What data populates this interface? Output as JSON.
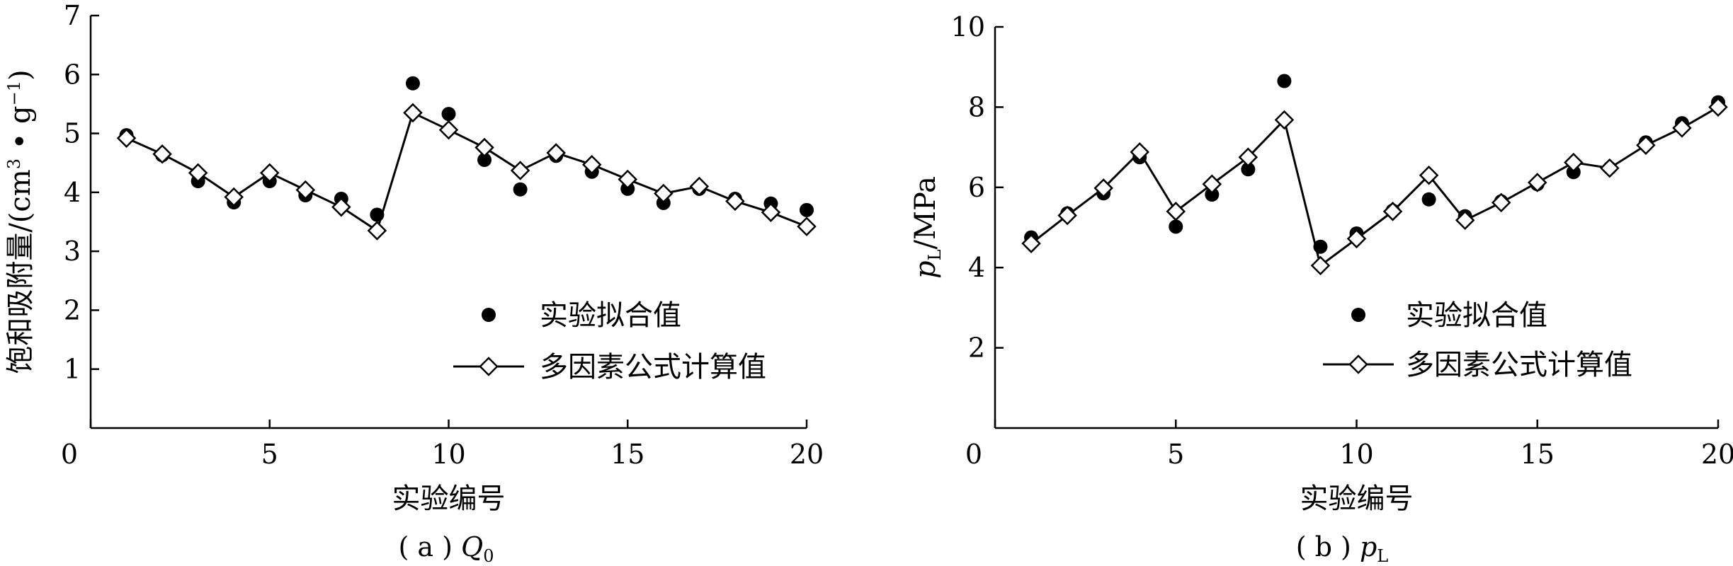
{
  "chart_data": [
    {
      "type": "scatter",
      "panel": "a",
      "caption": "( a )  Q0",
      "caption_parts": {
        "prefix": "( a )  ",
        "symbol": "Q",
        "subscript": "0"
      },
      "ylabel": "饱和吸附量/(cm³ • g⁻¹)",
      "ylabel_parts": {
        "main": "饱和吸附量/(cm",
        "sup1": "3",
        "mid": " • g",
        "sup2": "−1",
        "end": ")"
      },
      "xlabel": "实验编号",
      "xlim": [
        0,
        20
      ],
      "ylim": [
        0,
        7
      ],
      "x_ticks": [
        0,
        5,
        10,
        15,
        20
      ],
      "y_ticks": [
        1,
        2,
        3,
        4,
        5,
        6,
        7
      ],
      "legend_position": "bottom-right",
      "series": [
        {
          "name": "实验拟合值",
          "marker": "filled-circle",
          "x": [
            1,
            2,
            3,
            4,
            5,
            6,
            7,
            8,
            9,
            10,
            11,
            12,
            13,
            14,
            15,
            16,
            17,
            18,
            19,
            20
          ],
          "values": [
            4.97,
            4.63,
            4.19,
            3.83,
            4.19,
            3.95,
            3.89,
            3.62,
            5.85,
            5.33,
            4.55,
            4.05,
            4.62,
            4.35,
            4.06,
            3.82,
            4.06,
            3.89,
            3.81,
            3.7
          ]
        },
        {
          "name": "多因素公式计算值",
          "marker": "open-diamond-line",
          "x": [
            1,
            2,
            3,
            4,
            5,
            6,
            7,
            8,
            9,
            10,
            11,
            12,
            13,
            14,
            15,
            16,
            17,
            18,
            19,
            20
          ],
          "values": [
            4.92,
            4.65,
            4.33,
            3.92,
            4.33,
            4.04,
            3.75,
            3.35,
            5.35,
            5.06,
            4.76,
            4.37,
            4.67,
            4.47,
            4.22,
            3.98,
            4.1,
            3.85,
            3.66,
            3.42
          ]
        }
      ]
    },
    {
      "type": "scatter",
      "panel": "b",
      "caption": "( b ) pL",
      "caption_parts": {
        "prefix": "( b ) ",
        "symbol": "p",
        "subscript": "L"
      },
      "ylabel": "pL/MPa",
      "ylabel_parts": {
        "symbol": "p",
        "subscript": "L",
        "unit": "/MPa"
      },
      "xlabel": "实验编号",
      "xlim": [
        0,
        20
      ],
      "ylim": [
        0,
        10
      ],
      "x_ticks": [
        0,
        5,
        10,
        15,
        20
      ],
      "y_ticks": [
        2,
        4,
        6,
        8,
        10
      ],
      "legend_position": "bottom-right",
      "series": [
        {
          "name": "实验拟合值",
          "marker": "filled-circle",
          "x": [
            1,
            2,
            3,
            4,
            5,
            6,
            7,
            8,
            9,
            10,
            11,
            12,
            13,
            14,
            15,
            16,
            17,
            18,
            19,
            20
          ],
          "values": [
            4.75,
            5.35,
            5.85,
            6.75,
            5.02,
            5.82,
            6.45,
            8.65,
            4.52,
            4.85,
            5.42,
            5.7,
            5.28,
            5.65,
            6.08,
            6.38,
            6.48,
            7.12,
            7.6,
            8.12
          ]
        },
        {
          "name": "多因素公式计算值",
          "marker": "open-diamond-line",
          "x": [
            1,
            2,
            3,
            4,
            5,
            6,
            7,
            8,
            9,
            10,
            11,
            12,
            13,
            14,
            15,
            16,
            17,
            18,
            19,
            20
          ],
          "values": [
            4.6,
            5.3,
            5.98,
            6.88,
            5.4,
            6.08,
            6.75,
            7.68,
            4.05,
            4.72,
            5.4,
            6.3,
            5.18,
            5.62,
            6.12,
            6.62,
            6.48,
            7.05,
            7.48,
            8.0
          ]
        }
      ]
    }
  ],
  "colors": {
    "ink": "#000000",
    "background": "#ffffff"
  }
}
